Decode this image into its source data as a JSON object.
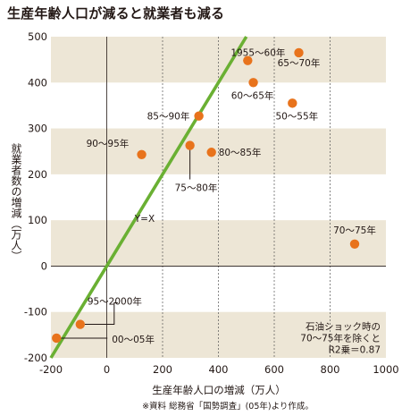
{
  "chart_title": "生産年齢人口が減ると就業者も減る",
  "source_note": "※資料 総務省「国勢調査」(05年)より作成。",
  "chart_data": {
    "type": "scatter",
    "xlabel": "生産年齢人口の増減（万人）",
    "ylabel": "就業者数の増減（万人）",
    "xlim": [
      -200,
      1000
    ],
    "ylim": [
      -200,
      500
    ],
    "x_ticks": [
      "-200",
      "0",
      "200",
      "400",
      "600",
      "800",
      "1000"
    ],
    "y_ticks": [
      "500",
      "400",
      "300",
      "200",
      "100",
      "0",
      "-100",
      "-200"
    ],
    "grid": "x dashed, y banded",
    "point_color": "#e8731c",
    "line_color": "#6ab033",
    "band_color": "#ede6d6",
    "points": [
      {
        "label": "1955〜60年",
        "x": 505,
        "y": 448
      },
      {
        "label": "65〜70年",
        "x": 688,
        "y": 465
      },
      {
        "label": "60〜65年",
        "x": 525,
        "y": 400
      },
      {
        "label": "50〜55年",
        "x": 665,
        "y": 355
      },
      {
        "label": "85〜90年",
        "x": 330,
        "y": 327
      },
      {
        "label": "90〜95年",
        "x": 125,
        "y": 243
      },
      {
        "label": "80〜85年",
        "x": 375,
        "y": 248
      },
      {
        "label": "75〜80年",
        "x": 298,
        "y": 263
      },
      {
        "label": "70〜75年",
        "x": 888,
        "y": 48
      },
      {
        "label": "95〜2000年",
        "x": -95,
        "y": -127
      },
      {
        "label": "00〜05年",
        "x": -180,
        "y": -157
      }
    ],
    "reference_line": {
      "label": "Y=X",
      "slope": 1,
      "intercept": 0
    },
    "note_lines": [
      "石油ショック時の",
      "70〜75年を除くと",
      "R2乗＝0.87"
    ]
  }
}
